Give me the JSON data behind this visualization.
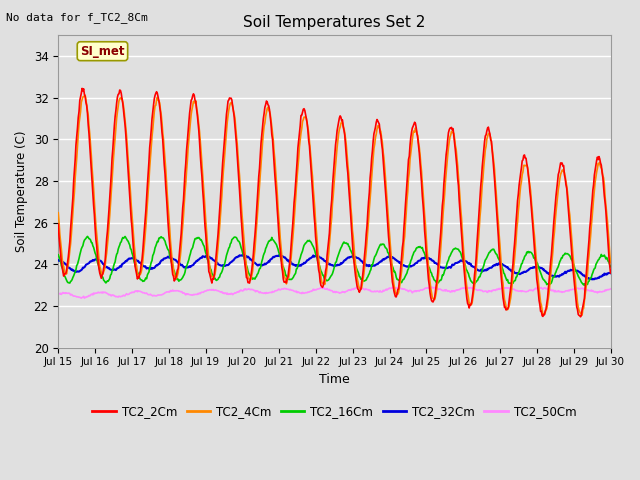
{
  "title": "Soil Temperatures Set 2",
  "subtitle": "No data for f_TC2_8Cm",
  "xlabel": "Time",
  "ylabel": "Soil Temperature (C)",
  "ylim": [
    20,
    35
  ],
  "yticks": [
    20,
    22,
    24,
    26,
    28,
    30,
    32,
    34
  ],
  "background_color": "#e0e0e0",
  "plot_bg_color": "#e0e0e0",
  "grid_color": "#ffffff",
  "series": {
    "TC2_2Cm": {
      "color": "#ff0000",
      "lw": 1.2
    },
    "TC2_4Cm": {
      "color": "#ff8800",
      "lw": 1.2
    },
    "TC2_16Cm": {
      "color": "#00cc00",
      "lw": 1.2
    },
    "TC2_32Cm": {
      "color": "#0000dd",
      "lw": 1.5
    },
    "TC2_50Cm": {
      "color": "#ff88ff",
      "lw": 1.2
    }
  },
  "annotation": "SI_met",
  "day_start": 15,
  "day_end": 30
}
